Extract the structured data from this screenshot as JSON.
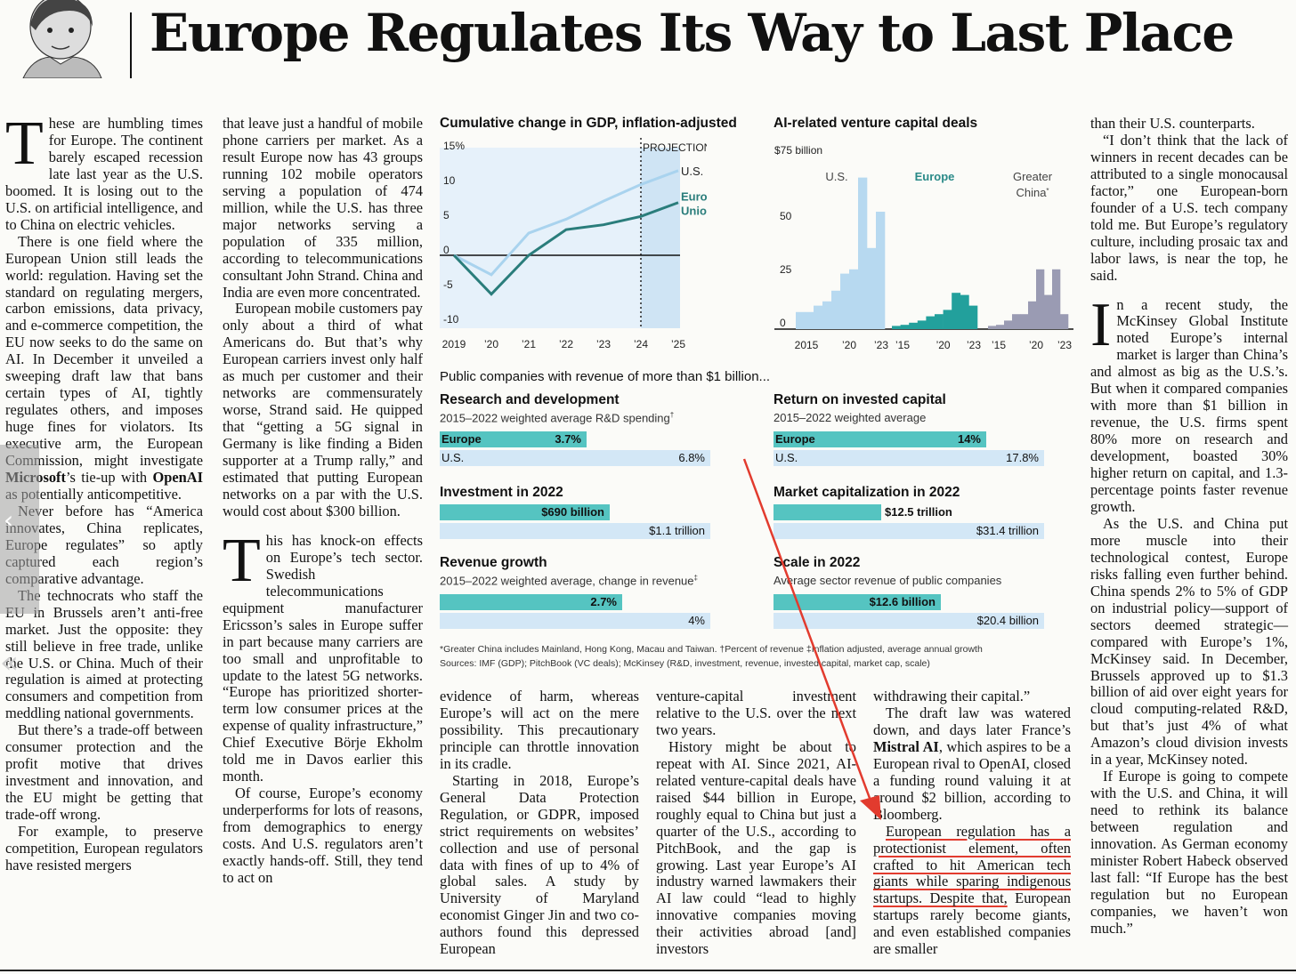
{
  "headline": "Europe Regulates Its Way to Last Place",
  "columns": {
    "col1": {
      "drop_cap": "T",
      "lead": "hese are humbling times for Europe. The continent barely escaped recession late last year as the U.S. boomed. It is losing out to the U.S. on artificial intelligence, and to China on electric vehicles.",
      "p2": "There is one field where the European Union still leads the world: regulation. Having set the standard on regulating mergers, carbon emissions, data privacy, and e-commerce competition, the EU now seeks to do the same on AI. In December it unveiled a sweeping draft law that bans certain types of AI, tightly regulates others, and imposes huge fines for violators. Its executive arm, the European Commission, might investigate ",
      "microsoft": "Microsoft",
      "p2b": "’s tie-up with ",
      "openai": "OpenAI",
      "p2c": " as potentially anticompetitive.",
      "p3": "Never before has “America innovates, China replicates, Europe regulates” so aptly captured each region’s comparative advantage.",
      "p4": "The technocrats who staff the EU in Brussels aren’t anti-free market. Just the opposite: they still believe in free trade, unlike the U.S. or China. Much of their regulation is aimed at protecting consumers and competition from meddling national governments.",
      "p5": "But there’s a trade-off between consumer protection and the profit motive that drives investment and innovation, and the EU might be getting that trade-off wrong.",
      "p6": "For example, to preserve competition, European regulators have resisted mergers"
    },
    "col2": {
      "p1": "that leave just a handful of mobile phone carriers per market. As a result Europe now has 43 groups running 102 mobile operators serving a population of 474 million, while the U.S. has three major networks serving a population of 335 million, according to telecommunications consultant John Strand. China and India are even more concentrated.",
      "p2": "European mobile customers pay only about a third of what Americans do. But that’s why European carriers invest only half as much per customer and their networks are commensurately worse, Strand said. He quipped that “getting a 5G signal in Germany is like finding a Biden supporter at a Trump rally,” and estimated that putting European networks on a par with the U.S. would cost about $300 billion.",
      "drop_cap": "T",
      "p3": "his has knock-on effects on Europe’s tech sector. Swedish telecommunications equipment manufacturer Ericsson’s sales in Europe suffer in part because many carriers are too small and unprofitable to update to the latest 5G networks. “Europe has prioritized shorter-term low consumer prices at the expense of quality infrastructure,” Chief Executive Börje Ekholm told me in Davos earlier this month.",
      "p4": "Of course, Europe’s economy underperforms for lots of reasons, from demographics to energy costs. And U.S. regulators aren’t exactly hands-off. Still, they tend to act on"
    },
    "col3": {
      "p1": "evidence of harm, whereas Europe’s will act on the mere possibility. This precautionary principle can throttle innovation in its cradle.",
      "p2": "Starting in 2018, Europe’s General Data Protection Regulation, or GDPR, imposed strict requirements on websites’ collection and use of personal data with fines of up to 4% of global sales. A study by University of Maryland economist Ginger Jin and two co-authors found this depressed European"
    },
    "col4": {
      "p1": "venture-capital investment relative to the U.S. over the next two years.",
      "p2": "History might be about to repeat with AI. Since 2021, AI-related venture-capital deals have raised $44 billion in Europe, roughly equal to China but just a quarter of the U.S., according to PitchBook, and the gap is growing. Last year Europe’s AI industry warned lawmakers their AI law could “lead to highly innovative companies moving their activities abroad [and] investors"
    },
    "col5": {
      "p1": "withdrawing their capital.”",
      "p2": "The draft law was watered down, and days later France’s ",
      "mistral": "Mistral AI",
      "p2b": ", which aspires to be a European rival to OpenAI, closed a funding round valuing it at around $2 billion, according to Bloomberg.",
      "highlight": "European regulation has a protectionist element, often crafted to hit American tech giants while sparing indigenous startups. Despite that,",
      "p3": " European startups rarely become giants, and even established companies are smaller"
    },
    "col6": {
      "p1": "than their U.S. counterparts.",
      "p2": "“I don’t think that the lack of winners in recent decades can be attributed to a single monocausal factor,” one European-born founder of a U.S. tech company told me. But Europe’s regulatory culture, including prosaic tax and labor laws, is near the top, he said.",
      "drop_cap": "I",
      "p3": "n a recent study, the McKinsey Global Institute noted Europe’s internal market is larger than China’s and almost as big as the U.S.’s. But when it compared companies with more than $1 billion in revenue, the U.S. firms spent 80% more on research and development, boasted 30% higher return on capital, and 1.3-percentage points faster revenue growth.",
      "p4": "As the U.S. and China put more muscle into their technological contest, Europe risks falling even further behind. China spends 2% to 5% of GDP on industrial policy—support of sectors deemed strategic—compared with Europe’s 1%, McKinsey said. In December, Brussels approved up to $1.3 billion of aid over eight years for cloud computing-related R&D, but that’s just 4% of what Amazon’s cloud division invests in a year, McKinsey noted.",
      "p5": "If Europe is going to compete with the U.S. and China, it will need to rethink its balance between regulation and innovation. As German economy minister Robert Habeck observed last fall: “If Europe has the best regulation but no European companies, we haven’t won much.”"
    }
  },
  "chart_data": [
    {
      "type": "line",
      "title": "Cumulative change in GDP, inflation-adjusted",
      "annotation": "PROJECTIONS",
      "x": [
        2019,
        2020,
        2021,
        2022,
        2023,
        2024,
        2025
      ],
      "x_tick_labels": [
        "2019",
        "’20",
        "’21",
        "’22",
        "’23",
        "’24",
        "’25"
      ],
      "y_tick_labels": [
        "15%",
        "10",
        "5",
        "0",
        "-5",
        "-10"
      ],
      "ylim": [
        -10,
        15
      ],
      "series": [
        {
          "name": "U.S.",
          "values": [
            0,
            -2.8,
            3.2,
            5.2,
            7.8,
            10.2,
            12.2
          ],
          "color": "#a9d3ee"
        },
        {
          "name": "European Union",
          "values": [
            0,
            -5.6,
            0,
            3.7,
            4.4,
            5.6,
            7.6
          ],
          "color": "#2a7d7b"
        }
      ]
    },
    {
      "type": "bar",
      "title": "AI-related venture capital deals",
      "y_unit_label": "$75 billion",
      "y_tick_labels": [
        "50",
        "25",
        "0"
      ],
      "ylim": [
        0,
        75
      ],
      "panels": [
        {
          "name": "U.S.",
          "x_tick_labels": [
            "2015",
            "’20",
            "’23"
          ],
          "values": [
            8,
            8,
            11,
            13,
            18,
            26,
            28,
            71,
            38,
            55
          ],
          "color": "#b7d9f0"
        },
        {
          "name": "Europe",
          "x_tick_labels": [
            "’15",
            "’20",
            "’23"
          ],
          "values": [
            1.5,
            2,
            3,
            4,
            6,
            7,
            9,
            17,
            16,
            11
          ],
          "color": "#22a09c"
        },
        {
          "name": "Greater China",
          "name_mark": "*",
          "x_tick_labels": [
            "’15",
            "’20",
            "’23"
          ],
          "values": [
            1.5,
            2,
            4,
            7,
            7,
            13,
            28,
            16,
            28,
            7
          ],
          "color": "#9a9bb3"
        }
      ]
    },
    {
      "type": "bar",
      "section_title": "Public companies with revenue of more than $1 billion...",
      "panels": [
        {
          "title": "Research and development",
          "subtitle": "2015–2022 weighted average R&D spending",
          "subtitle_mark": "†",
          "bars": [
            {
              "name": "Europe",
              "value": 3.7,
              "label": "3.7%"
            },
            {
              "name": "U.S.",
              "value": 6.8,
              "label": "6.8%"
            }
          ]
        },
        {
          "title": "Return on invested capital",
          "subtitle": "2015–2022 weighted average",
          "bars": [
            {
              "name": "Europe",
              "value": 14,
              "label": "14%"
            },
            {
              "name": "U.S.",
              "value": 17.8,
              "label": "17.8%"
            }
          ]
        },
        {
          "title": "Investment in 2022",
          "bars": [
            {
              "value": 690,
              "label": "$690 billion"
            },
            {
              "value": 1100,
              "label": "$1.1 trillion"
            }
          ]
        },
        {
          "title": "Market capitalization in 2022",
          "bars": [
            {
              "value": 12.5,
              "label": "$12.5 trillion"
            },
            {
              "value": 31.4,
              "label": "$31.4 trillion"
            }
          ]
        },
        {
          "title": "Revenue growth",
          "subtitle": "2015–2022 weighted average, change in revenue",
          "subtitle_mark": "‡",
          "bars": [
            {
              "value": 2.7,
              "label": "2.7%"
            },
            {
              "value": 4,
              "label": "4%"
            }
          ]
        },
        {
          "title": "Scale in 2022",
          "subtitle": "Average sector revenue of public companies",
          "bars": [
            {
              "value": 12.6,
              "label": "$12.6 billion"
            },
            {
              "value": 20.4,
              "label": "$20.4 billion"
            }
          ]
        }
      ],
      "footnote1": "*Greater China includes Mainland, Hong Kong, Macau and Taiwan.   †Percent of revenue   ‡Inflation adjusted, average annual growth",
      "footnote2": "Sources: IMF (GDP); PitchBook (VC deals); McKinsey (R&D, investment, revenue, invested capital, market cap, scale)"
    }
  ],
  "colors": {
    "teal": "#55c4c1",
    "light_blue": "#d3e7f6",
    "eu_line": "#2a7d7b",
    "us_line": "#a9d3ee",
    "annotation_red": "#e23b2e"
  }
}
